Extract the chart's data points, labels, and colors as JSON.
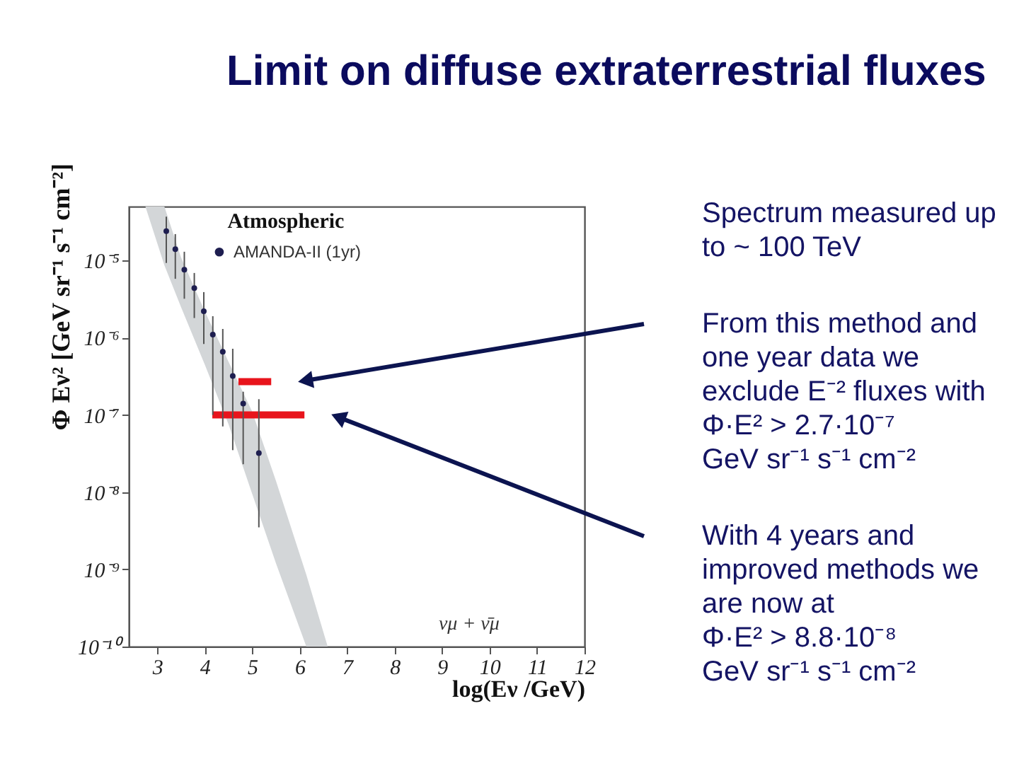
{
  "chart_data": {
    "type": "scatter",
    "title": "Limit on diffuse extraterrestrial fluxes",
    "xlabel": "log(Eν /GeV)",
    "ylabel": "Φ Eν² [GeV sr⁻¹ s⁻¹ cm⁻²]",
    "legend_title": "Atmospheric",
    "legend": "top",
    "log": "y",
    "xlim": [
      2.4,
      12
    ],
    "xticks": [
      3,
      4,
      5,
      6,
      7,
      8,
      9,
      10,
      11,
      12
    ],
    "ylim": [
      1e-10,
      5e-05
    ],
    "yticks": [
      {
        "value": 1e-10,
        "label": "10⁻¹⁰"
      },
      {
        "value": 1e-09,
        "label": "10⁻⁹"
      },
      {
        "value": 1e-08,
        "label": "10⁻⁸"
      },
      {
        "value": 1e-07,
        "label": "10⁻⁷"
      },
      {
        "value": 1e-06,
        "label": "10⁻⁶"
      },
      {
        "value": 1e-05,
        "label": "10⁻⁵"
      }
    ],
    "annotations": [
      "νμ + ν̄μ",
      "Spectrum measured up\nto ~ 100 TeV",
      "From this method and\none year data we\nexclude E⁻² fluxes with\nΦ·E² > 2.7·10⁻⁷\nGeV sr⁻¹ s⁻¹ cm⁻²",
      "With 4 years and\nimproved methods we\nare now at\nΦ·E² > 8.8·10⁻⁸\nGeV sr⁻¹ s⁻¹ cm⁻²"
    ],
    "series": [
      {
        "type": "area",
        "color": "#d3d6d8",
        "x": [
          2.75,
          3.15,
          3.5,
          4.0,
          4.5,
          5.0,
          5.5,
          6.14,
          6.59
        ],
        "values": [
          null,
          null,
          null,
          null,
          null,
          null,
          null,
          null,
          null
        ],
        "lower": [
          5e-05,
          8.7e-06,
          2.5e-06,
          4.5e-07,
          7.6e-08,
          9.5e-09,
          1.2e-09,
          1e-10,
          1e-10
        ],
        "upper": [
          5e-05,
          5e-05,
          1.1e-05,
          2.2e-06,
          4.9e-07,
          1.1e-07,
          1.4e-08,
          8.5e-10,
          1e-10
        ]
      },
      {
        "type": "line",
        "color": "#e8141c",
        "x": [
          4.71,
          5.4
        ],
        "values": [
          2.7e-07,
          2.7e-07
        ]
      },
      {
        "type": "line",
        "color": "#e8141c",
        "x": [
          4.16,
          6.1
        ],
        "values": [
          1e-07,
          1e-07
        ]
      },
      {
        "name": "AMANDA-II (1yr)",
        "color": "#1e1e50",
        "marker": "circle",
        "x": [
          3.19,
          3.38,
          3.57,
          3.78,
          3.98,
          4.17,
          4.38,
          4.59,
          4.81,
          5.14
        ],
        "values": [
          2.4e-05,
          1.4e-05,
          7.6e-06,
          4.4e-06,
          2.2e-06,
          1.1e-06,
          6.6e-07,
          3.2e-07,
          1.4e-07,
          3.2e-08
        ],
        "errors": [
          [
            9.3e-06,
            3.7e-05
          ],
          [
            5.8e-06,
            2.2e-05
          ],
          [
            3.2e-06,
            1.3e-05
          ],
          [
            1.8e-06,
            6.9e-06
          ],
          [
            8.3e-07,
            3.9e-06
          ],
          [
            1e-07,
            1.9e-06
          ],
          [
            7.1e-08,
            1.3e-06
          ],
          [
            3.5e-08,
            7.2e-07
          ],
          [
            2.3e-08,
            2e-07
          ],
          [
            3.5e-09,
            1.6e-07
          ]
        ]
      }
    ]
  }
}
